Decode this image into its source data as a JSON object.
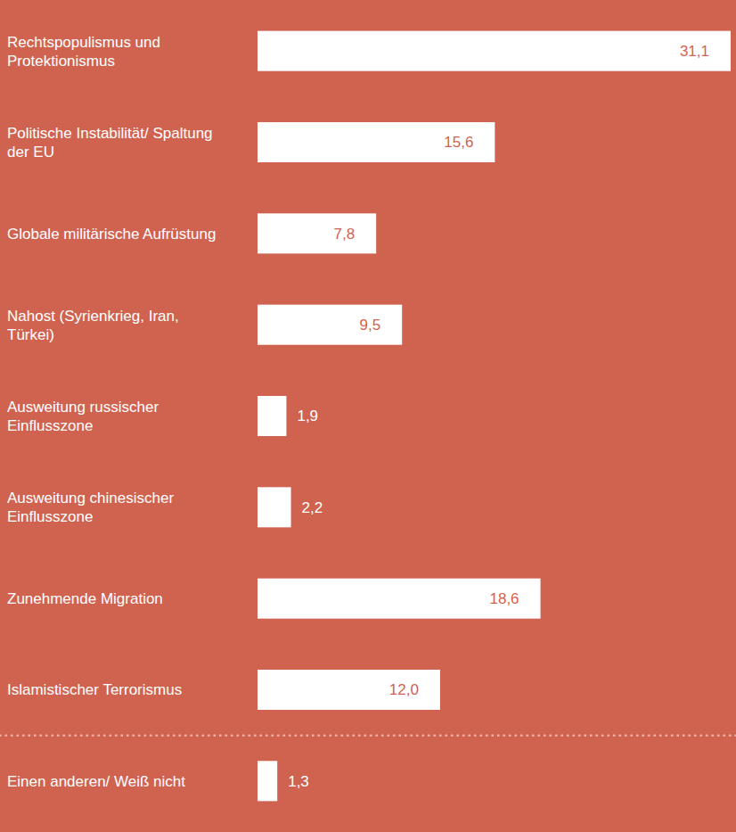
{
  "chart_data": {
    "type": "bar",
    "orientation": "horizontal",
    "categories": [
      "Rechtspopulismus und Protektionismus",
      "Politische Instabilität/ Spaltung der EU",
      "Globale militärische Aufrüstung",
      "Nahost (Syrienkrieg, Iran, Türkei)",
      "Ausweitung russischer Einflusszone",
      "Ausweitung chinesischer Einflusszone",
      "Zunehmende Migration",
      "Islamistischer Terrorismus",
      "Einen anderen/ Weiß nicht"
    ],
    "values": [
      31.1,
      15.6,
      7.8,
      9.5,
      1.9,
      2.2,
      18.6,
      12.0,
      1.3
    ],
    "value_labels": [
      "31,1",
      "15,6",
      "7,8",
      "9,5",
      "1,9",
      "2,2",
      "18,6",
      "12,0",
      "1,3"
    ],
    "color": "#ffffff",
    "xlim": [
      0,
      31.1
    ],
    "data_labels": true,
    "tick_labels": false,
    "grid": false
  }
}
